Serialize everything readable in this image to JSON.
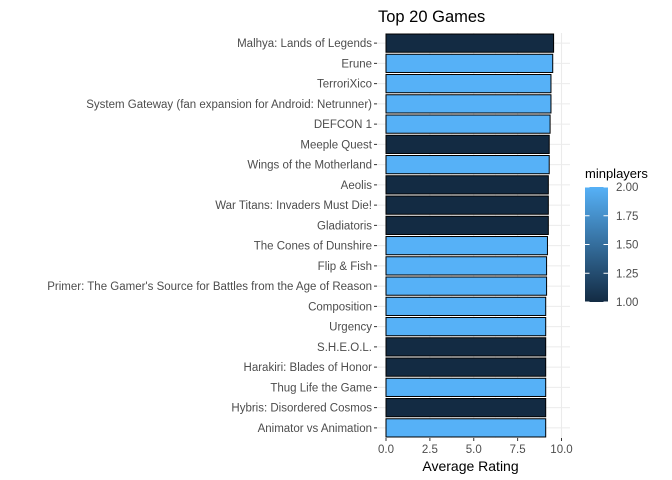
{
  "chart_data": {
    "type": "bar",
    "orientation": "horizontal",
    "title": "Top 20 Games",
    "xlabel": "Average Rating",
    "ylabel": "",
    "xlim": [
      0,
      10
    ],
    "x_ticks": [
      "0.0",
      "2.5",
      "5.0",
      "7.5",
      "10.0"
    ],
    "x_tick_values": [
      0,
      2.5,
      5,
      7.5,
      10
    ],
    "grid": true,
    "bar_outline_color": "#000000",
    "categories": [
      "Malhya: Lands of Legends",
      "Erune",
      "TerroriXico",
      "System Gateway (fan expansion for Android: Netrunner)",
      "DEFCON 1",
      "Meeple Quest",
      "Wings of the Motherland",
      "Aeolis",
      "War Titans: Invaders Must Die!",
      "Gladiatoris",
      "The Cones of Dunshire",
      "Flip & Fish",
      "Primer: The Gamer's Source for Battles from the Age of Reason",
      "Composition",
      "Urgency",
      "S.H.E.O.L.",
      "Harakiri: Blades of Honor",
      "Thug Life the Game",
      "Hybris: Disordered Cosmos",
      "Animator vs Animation"
    ],
    "values": [
      9.55,
      9.5,
      9.4,
      9.4,
      9.35,
      9.3,
      9.3,
      9.25,
      9.25,
      9.25,
      9.2,
      9.15,
      9.15,
      9.1,
      9.1,
      9.1,
      9.1,
      9.1,
      9.1,
      9.1
    ],
    "fill_variable": "minplayers",
    "minplayers": [
      1,
      2,
      2,
      2,
      2,
      1,
      2,
      1,
      1,
      1,
      2,
      2,
      2,
      2,
      2,
      1,
      1,
      2,
      1,
      2
    ],
    "legend": {
      "title": "minplayers",
      "position": "right",
      "labels": [
        "2.00",
        "1.75",
        "1.50",
        "1.25",
        "1.00"
      ],
      "values": [
        2,
        1.75,
        1.5,
        1.25,
        1
      ],
      "range": [
        1,
        2
      ],
      "color_low": "#132B43",
      "color_high": "#56B1F7"
    }
  }
}
